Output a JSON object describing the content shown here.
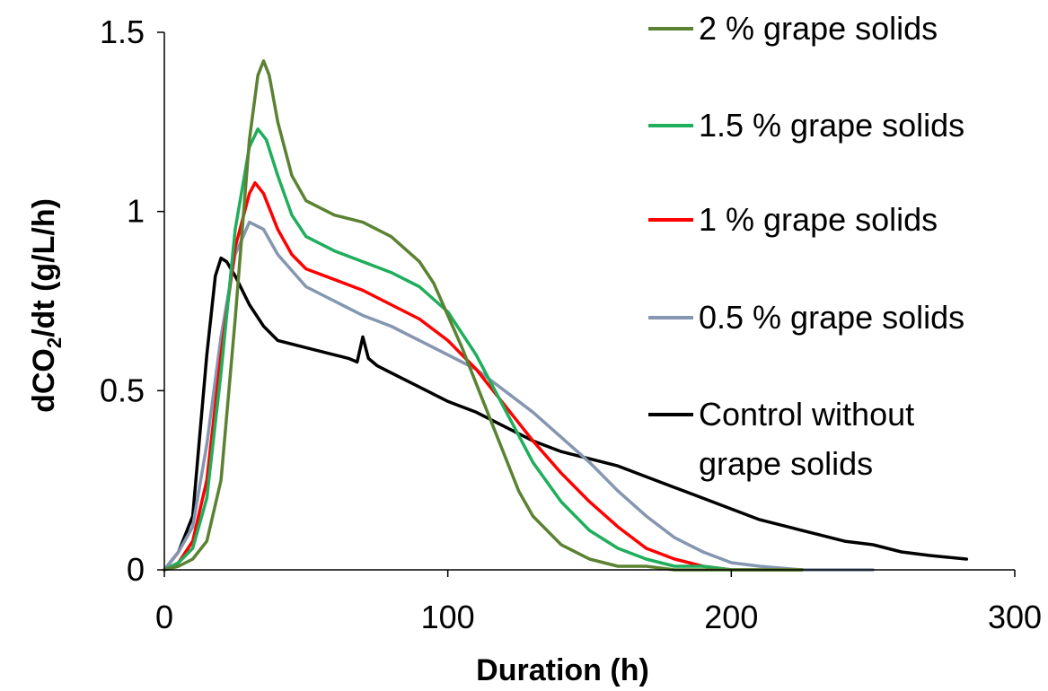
{
  "chart_data": {
    "type": "line",
    "title": "",
    "xlabel": "Duration (h)",
    "ylabel_parts": [
      "dCO",
      "2",
      "/dt  (g/L/h)"
    ],
    "xlim": [
      0,
      300
    ],
    "ylim": [
      0,
      1.5
    ],
    "x_ticks": [
      "0",
      "100",
      "200",
      "300"
    ],
    "y_ticks": [
      "0",
      "0.5",
      "1",
      "1.5"
    ],
    "grid": false,
    "legend_position": "right",
    "series": [
      {
        "name": "2 % grape solids",
        "color": "#5a8232",
        "x": [
          0,
          5,
          10,
          15,
          20,
          25,
          30,
          33,
          35,
          37,
          40,
          45,
          50,
          60,
          70,
          80,
          90,
          95,
          100,
          105,
          110,
          115,
          120,
          125,
          130,
          140,
          150,
          160,
          170,
          180,
          200,
          225
        ],
        "y": [
          0,
          0.01,
          0.03,
          0.08,
          0.25,
          0.7,
          1.2,
          1.38,
          1.42,
          1.38,
          1.25,
          1.1,
          1.03,
          0.99,
          0.97,
          0.93,
          0.86,
          0.8,
          0.71,
          0.62,
          0.52,
          0.42,
          0.32,
          0.22,
          0.15,
          0.07,
          0.03,
          0.01,
          0.01,
          0,
          0,
          0
        ]
      },
      {
        "name": "1.5 % grape solids",
        "color": "#1fae5b",
        "x": [
          0,
          5,
          10,
          15,
          20,
          25,
          30,
          33,
          36,
          40,
          45,
          50,
          60,
          70,
          80,
          90,
          100,
          110,
          120,
          130,
          140,
          150,
          160,
          170,
          180,
          190,
          200,
          225
        ],
        "y": [
          0,
          0.02,
          0.06,
          0.2,
          0.55,
          0.95,
          1.18,
          1.23,
          1.2,
          1.1,
          0.99,
          0.93,
          0.89,
          0.86,
          0.83,
          0.79,
          0.72,
          0.6,
          0.45,
          0.3,
          0.19,
          0.11,
          0.06,
          0.03,
          0.01,
          0.01,
          0,
          0
        ]
      },
      {
        "name": "1 % grape solids",
        "color": "#ff0000",
        "x": [
          0,
          5,
          10,
          15,
          20,
          25,
          30,
          32,
          35,
          40,
          45,
          50,
          60,
          70,
          80,
          90,
          100,
          110,
          120,
          130,
          140,
          150,
          160,
          170,
          180,
          190,
          200,
          225
        ],
        "y": [
          0,
          0.02,
          0.08,
          0.25,
          0.6,
          0.9,
          1.05,
          1.08,
          1.05,
          0.95,
          0.88,
          0.84,
          0.81,
          0.78,
          0.74,
          0.7,
          0.64,
          0.56,
          0.46,
          0.36,
          0.27,
          0.19,
          0.12,
          0.06,
          0.03,
          0.01,
          0,
          0
        ]
      },
      {
        "name": "0.5 % grape solids",
        "color": "#8496b0",
        "x": [
          0,
          5,
          10,
          15,
          20,
          25,
          30,
          35,
          40,
          50,
          60,
          70,
          80,
          90,
          100,
          110,
          115,
          120,
          130,
          140,
          150,
          160,
          170,
          180,
          190,
          200,
          210,
          225,
          250
        ],
        "y": [
          0,
          0.05,
          0.12,
          0.35,
          0.65,
          0.88,
          0.97,
          0.95,
          0.88,
          0.79,
          0.75,
          0.71,
          0.68,
          0.64,
          0.6,
          0.56,
          0.53,
          0.5,
          0.44,
          0.37,
          0.3,
          0.22,
          0.15,
          0.09,
          0.05,
          0.02,
          0.01,
          0,
          0
        ]
      },
      {
        "name": "Control without grape solids",
        "color": "#000000",
        "x": [
          0,
          5,
          10,
          15,
          18,
          20,
          22,
          25,
          30,
          35,
          40,
          50,
          60,
          65,
          68,
          70,
          72,
          75,
          80,
          90,
          100,
          110,
          120,
          130,
          140,
          150,
          160,
          170,
          180,
          190,
          200,
          210,
          220,
          230,
          240,
          250,
          260,
          270,
          283
        ],
        "y": [
          0,
          0.05,
          0.15,
          0.6,
          0.82,
          0.87,
          0.86,
          0.82,
          0.74,
          0.68,
          0.64,
          0.62,
          0.6,
          0.59,
          0.58,
          0.65,
          0.59,
          0.57,
          0.55,
          0.51,
          0.47,
          0.44,
          0.4,
          0.36,
          0.33,
          0.31,
          0.29,
          0.26,
          0.23,
          0.2,
          0.17,
          0.14,
          0.12,
          0.1,
          0.08,
          0.07,
          0.05,
          0.04,
          0.03
        ]
      }
    ]
  }
}
